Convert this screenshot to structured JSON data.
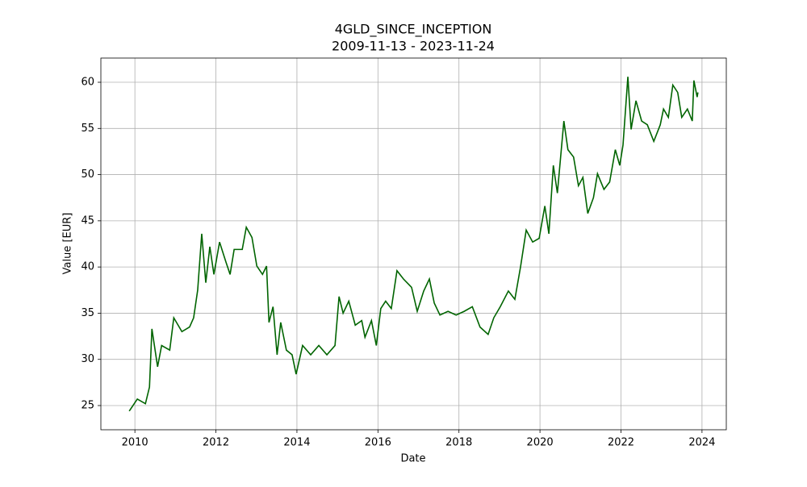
{
  "chart_data": {
    "type": "line",
    "title": "4GLD_SINCE_INCEPTION",
    "subtitle": "2009-11-13 - 2023-11-24",
    "x_label": "Date",
    "y_label": "Value [EUR]",
    "x": [
      2009.86,
      2010.06,
      2010.26,
      2010.36,
      2010.42,
      2010.56,
      2010.66,
      2010.86,
      2010.96,
      2011.16,
      2011.35,
      2011.45,
      2011.55,
      2011.65,
      2011.75,
      2011.85,
      2011.95,
      2012.09,
      2012.25,
      2012.35,
      2012.45,
      2012.65,
      2012.75,
      2012.89,
      2013.01,
      2013.15,
      2013.25,
      2013.31,
      2013.41,
      2013.51,
      2013.6,
      2013.74,
      2013.88,
      2013.98,
      2014.14,
      2014.34,
      2014.54,
      2014.74,
      2014.94,
      2015.04,
      2015.14,
      2015.28,
      2015.44,
      2015.6,
      2015.68,
      2015.84,
      2015.96,
      2016.07,
      2016.19,
      2016.33,
      2016.47,
      2016.63,
      2016.83,
      2016.97,
      2017.13,
      2017.27,
      2017.39,
      2017.53,
      2017.73,
      2017.93,
      2018.13,
      2018.33,
      2018.52,
      2018.72,
      2018.86,
      2019.02,
      2019.22,
      2019.38,
      2019.52,
      2019.66,
      2019.82,
      2019.98,
      2020.12,
      2020.22,
      2020.33,
      2020.43,
      2020.59,
      2020.69,
      2020.83,
      2020.95,
      2021.06,
      2021.18,
      2021.32,
      2021.42,
      2021.58,
      2021.72,
      2021.86,
      2021.97,
      2022.05,
      2022.17,
      2022.25,
      2022.37,
      2022.51,
      2022.65,
      2022.81,
      2022.97,
      2023.05,
      2023.17,
      2023.28,
      2023.4,
      2023.5,
      2023.64,
      2023.76,
      2023.8,
      2023.88,
      2023.9
    ],
    "series": [
      {
        "name": "4GLD",
        "color": "#006400",
        "values": [
          24.4,
          25.7,
          25.2,
          27.0,
          33.3,
          29.2,
          31.5,
          31.0,
          34.5,
          33.0,
          33.5,
          34.5,
          37.5,
          43.6,
          38.3,
          42.2,
          39.2,
          42.7,
          40.5,
          39.2,
          41.9,
          41.9,
          44.3,
          43.2,
          40.1,
          39.2,
          40.1,
          34.0,
          35.7,
          30.5,
          34.0,
          31.0,
          30.5,
          28.4,
          31.5,
          30.5,
          31.5,
          30.5,
          31.5,
          36.8,
          35.0,
          36.3,
          33.7,
          34.2,
          32.4,
          34.2,
          31.5,
          35.5,
          36.3,
          35.5,
          39.6,
          38.7,
          37.8,
          35.2,
          37.4,
          38.7,
          36.1,
          34.8,
          35.2,
          34.8,
          35.2,
          35.7,
          33.5,
          32.7,
          34.5,
          35.7,
          37.4,
          36.5,
          40.0,
          44.0,
          42.7,
          43.1,
          46.6,
          43.6,
          51.0,
          48.0,
          55.8,
          52.7,
          51.9,
          48.8,
          49.7,
          45.8,
          47.5,
          50.1,
          48.4,
          49.2,
          52.7,
          51.0,
          53.2,
          60.6,
          54.9,
          58.0,
          55.8,
          55.4,
          53.6,
          55.4,
          57.1,
          56.2,
          59.7,
          58.9,
          56.2,
          57.1,
          55.8,
          60.2,
          58.4,
          58.9
        ]
      }
    ],
    "xlim": [
      2009.16,
      2024.6
    ],
    "xticks": [
      2010,
      2012,
      2014,
      2016,
      2018,
      2020,
      2022,
      2024
    ],
    "ylim": [
      22.38,
      62.62
    ],
    "yticks": [
      25,
      30,
      35,
      40,
      45,
      50,
      55,
      60
    ],
    "grid": true
  }
}
